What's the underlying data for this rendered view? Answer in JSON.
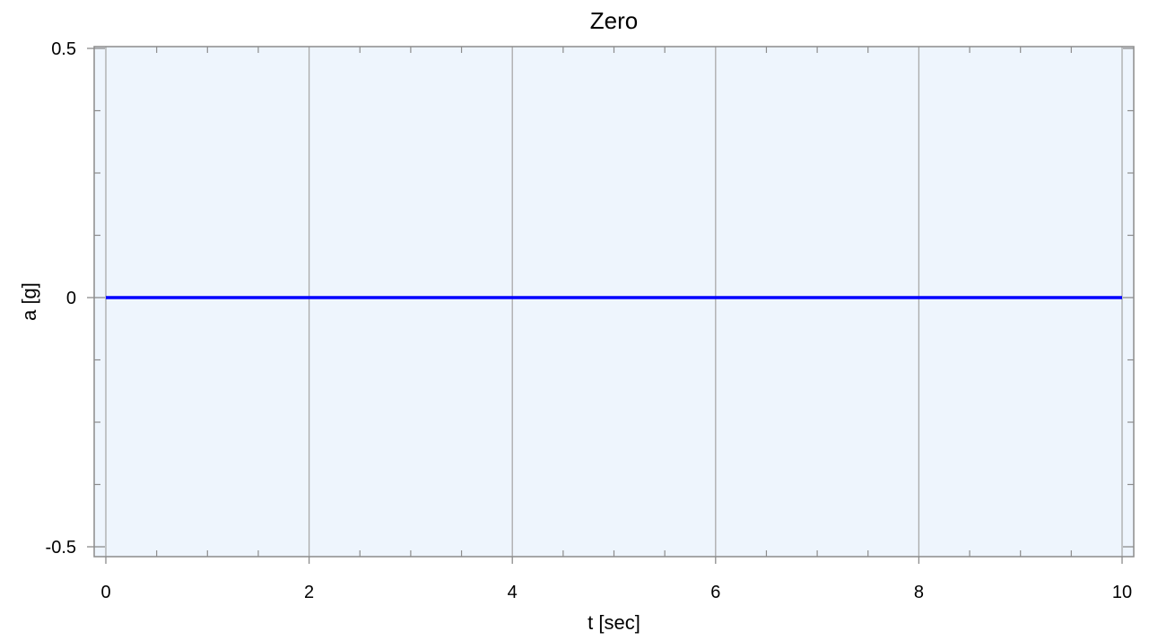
{
  "chart_data": {
    "type": "line",
    "title": "Zero",
    "xlabel": "t [sec]",
    "ylabel": "a [g]",
    "xlim": [
      0,
      10
    ],
    "ylim": [
      -0.5,
      0.5
    ],
    "x_ticks": [
      0,
      2,
      4,
      6,
      8,
      10
    ],
    "x_tick_labels": [
      "0",
      "2",
      "4",
      "6",
      "8",
      "10"
    ],
    "x_minor_step": 0.5,
    "y_ticks": [
      -0.5,
      0,
      0.5
    ],
    "y_tick_labels": [
      "-0.5",
      "0",
      "0.5"
    ],
    "y_minor_step": 0.125,
    "grid": true,
    "plot_background": "#eef5fd",
    "grid_color": "#a9a9a9",
    "series": [
      {
        "color": "#0000ff",
        "x": [
          0,
          10
        ],
        "y": [
          0,
          0
        ]
      }
    ]
  }
}
